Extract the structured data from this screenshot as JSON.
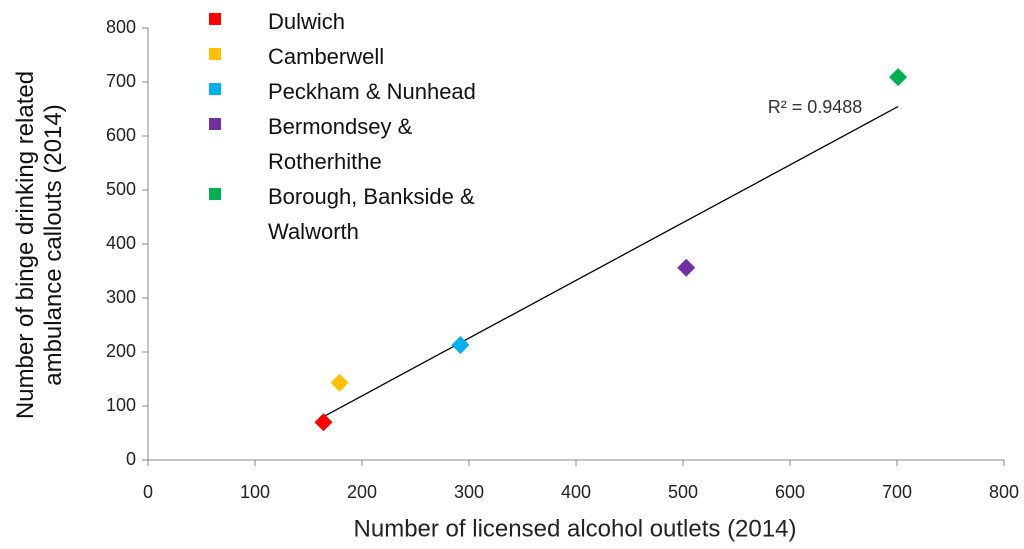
{
  "chart_data": {
    "type": "scatter",
    "x_label": "Number of licensed alcohol outlets (2014)",
    "y_label": "Number of binge drinking related ambulance callouts (2014)",
    "annotation": "R² = 0.9488",
    "trendline": true,
    "xlim": [
      0,
      800
    ],
    "xticks": [
      0,
      100,
      200,
      300,
      400,
      500,
      600,
      700,
      800
    ],
    "ylim": [
      0,
      800
    ],
    "yticks": [
      0,
      100,
      200,
      300,
      400,
      500,
      600,
      700,
      800
    ],
    "series": [
      {
        "name": "Dulwich",
        "color": "#ff0000",
        "x": [
          164
        ],
        "values": [
          70
        ]
      },
      {
        "name": "Camberwell",
        "color": "#ffc000",
        "x": [
          179
        ],
        "values": [
          143
        ]
      },
      {
        "name": "Peckham & Nunhead",
        "color": "#00b0f0",
        "x": [
          292
        ],
        "values": [
          213
        ]
      },
      {
        "name": "Bermondsey & Rotherhithe",
        "color": "#7030a0",
        "x": [
          503
        ],
        "values": [
          356
        ]
      },
      {
        "name": "Borough, Bankside & Walworth",
        "color": "#00b050",
        "x": [
          701
        ],
        "values": [
          709
        ]
      }
    ]
  }
}
